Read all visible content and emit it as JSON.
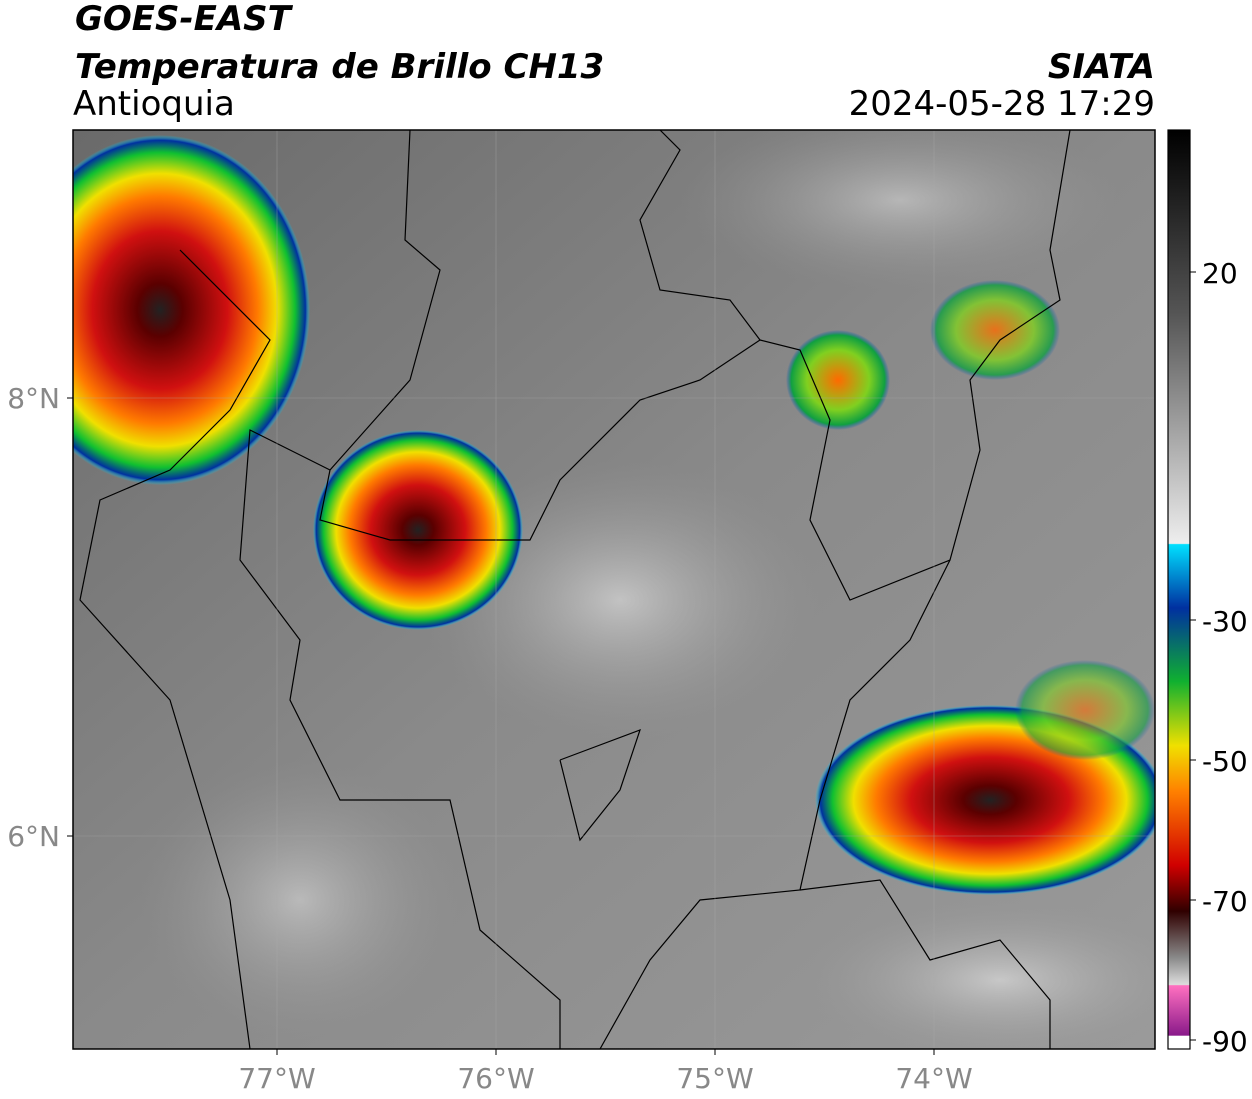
{
  "header": {
    "satellite": "GOES-EAST",
    "product": "Temperatura de Brillo CH13",
    "region": "Antioquia",
    "agency": "SIATA",
    "datetime": "2024-05-28 17:29"
  },
  "map": {
    "lat_labels": [
      "8°N",
      "6°N"
    ],
    "lon_labels": [
      "77°W",
      "76°W",
      "75°W",
      "74°W"
    ]
  },
  "colorbar": {
    "ticks": [
      20,
      -30,
      -50,
      -70,
      -90
    ]
  }
}
